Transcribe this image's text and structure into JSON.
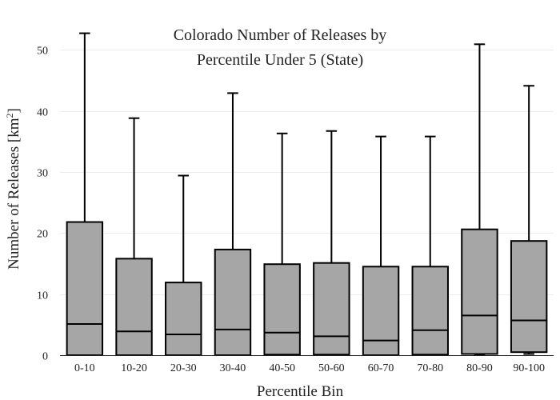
{
  "chart_data": {
    "type": "box",
    "title_lines": [
      "Colorado Number of Releases by",
      "Percentile Under 5 (State)"
    ],
    "xlabel": "Percentile Bin",
    "ylabel": "Number of Releases  [km",
    "ylabel_superscript": "2",
    "ylabel_suffix": "]",
    "ylim": [
      0,
      55
    ],
    "yticks": [
      0,
      10,
      20,
      30,
      40,
      50
    ],
    "grid": true,
    "colors": {
      "box_fill": "#a6a6a6",
      "box_line": "#000000"
    },
    "categories": [
      "0-10",
      "10-20",
      "20-30",
      "30-40",
      "40-50",
      "50-60",
      "60-70",
      "70-80",
      "80-90",
      "90-100"
    ],
    "boxes": [
      {
        "min": 0,
        "q1": 0,
        "median": 5.1,
        "q3": 21.8,
        "max": 52.7
      },
      {
        "min": 0,
        "q1": 0,
        "median": 3.9,
        "q3": 15.8,
        "max": 38.8
      },
      {
        "min": 0,
        "q1": 0,
        "median": 3.4,
        "q3": 11.9,
        "max": 29.4
      },
      {
        "min": 0,
        "q1": 0,
        "median": 4.2,
        "q3": 17.3,
        "max": 42.9
      },
      {
        "min": 0,
        "q1": 0.1,
        "median": 3.7,
        "q3": 14.9,
        "max": 36.3
      },
      {
        "min": 0,
        "q1": 0.1,
        "median": 3.1,
        "q3": 15.1,
        "max": 36.7
      },
      {
        "min": 0,
        "q1": 0,
        "median": 2.4,
        "q3": 14.5,
        "max": 35.8
      },
      {
        "min": 0,
        "q1": 0.1,
        "median": 4.1,
        "q3": 14.5,
        "max": 35.8
      },
      {
        "min": 0,
        "q1": 0.2,
        "median": 6.5,
        "q3": 20.6,
        "max": 50.9
      },
      {
        "min": 0.2,
        "q1": 0.5,
        "median": 5.7,
        "q3": 18.7,
        "max": 44.1
      }
    ]
  }
}
